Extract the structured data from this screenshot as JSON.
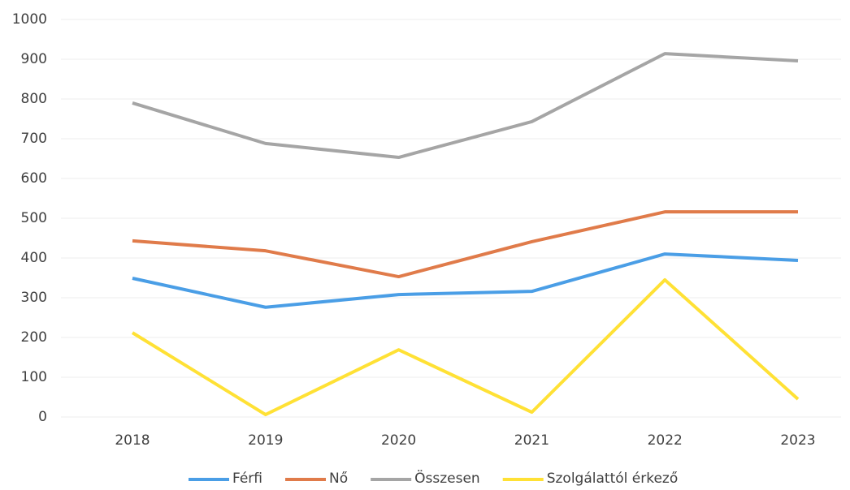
{
  "chart_data": {
    "type": "line",
    "categories": [
      "2018",
      "2019",
      "2020",
      "2021",
      "2022",
      "2023"
    ],
    "series": [
      {
        "name": "Férfi",
        "color": "#4a9ee6",
        "values": [
          349,
          276,
          308,
          316,
          410,
          394
        ]
      },
      {
        "name": "Nő",
        "color": "#e07b4a",
        "values": [
          443,
          418,
          353,
          441,
          516,
          516
        ]
      },
      {
        "name": "Összesen",
        "color": "#a5a5a5",
        "values": [
          790,
          688,
          653,
          743,
          914,
          896
        ]
      },
      {
        "name": "Szolgálattól érkező",
        "color": "#ffe135",
        "values": [
          212,
          6,
          169,
          12,
          345,
          45
        ]
      }
    ],
    "ylim": [
      0,
      1000
    ],
    "yticks": [
      0,
      100,
      200,
      300,
      400,
      500,
      600,
      700,
      800,
      900,
      1000
    ],
    "grid": true,
    "legend": "bottom"
  }
}
